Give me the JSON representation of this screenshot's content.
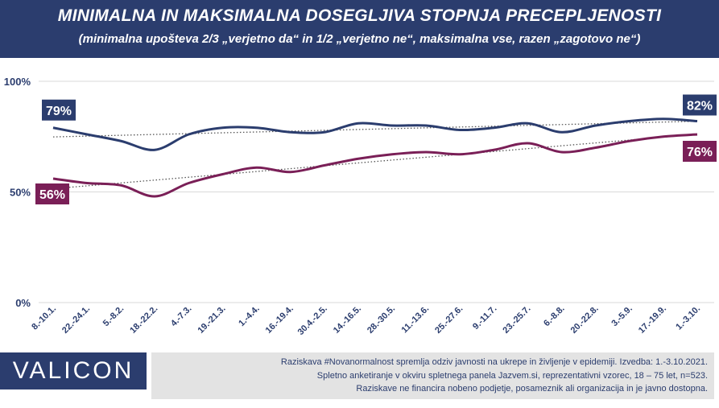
{
  "header": {
    "title": "MINIMALNA IN MAKSIMALNA DOSEGLJIVA STOPNJA PRECEPLJENOSTI",
    "subtitle": "(minimalna upošteva 2/3 „verjetno da“ in 1/2 „verjetno ne“, maksimalna vse, razen „zagotovo ne“)"
  },
  "chart_data": {
    "type": "line",
    "categories": [
      "8.-10.1.",
      "22.-24.1.",
      "5.-8.2.",
      "18.-22.2.",
      "4.-7.3.",
      "19.-21.3.",
      "1.-4.4.",
      "16.-19.4.",
      "30.4.-2.5.",
      "14.-16.5.",
      "28.-30.5.",
      "11.-13.6.",
      "25.-27.6.",
      "9.-11.7.",
      "23.-25.7.",
      "6.-8.8.",
      "20.-22.8.",
      "3.-5.9.",
      "17.-19.9.",
      "1.-3.10."
    ],
    "series": [
      {
        "key": "max",
        "color": "#2b3d6e",
        "values": [
          79,
          76,
          73,
          69,
          76,
          79,
          79,
          77,
          77,
          81,
          80,
          80,
          78,
          79,
          81,
          77,
          80,
          82,
          83,
          82
        ],
        "start_label": "79%",
        "end_label": "82%"
      },
      {
        "key": "min",
        "color": "#7a1f57",
        "values": [
          56,
          54,
          53,
          48,
          54,
          58,
          61,
          59,
          62,
          65,
          67,
          68,
          67,
          69,
          72,
          68,
          70,
          73,
          75,
          76
        ],
        "start_label": "56%",
        "end_label": "76%"
      }
    ],
    "yticks": [
      "0%",
      "50%",
      "100%"
    ],
    "ylim": [
      0,
      100
    ],
    "grid": true,
    "trendlines": "dotted"
  },
  "logo": "VALICON",
  "footer": {
    "line1": "Raziskava #Novanormalnost spremlja odziv javnosti na ukrepe in življenje v epidemiji. Izvedba: 1.-3.10.2021.",
    "line2": "Spletno anketiranje v okviru spletnega panela Jazvem.si, reprezentativni vzorec, 18 – 75 let, n=523.",
    "line3": "Raziskave ne financira nobeno podjetje, posameznik ali organizacija in je javno dostopna."
  }
}
